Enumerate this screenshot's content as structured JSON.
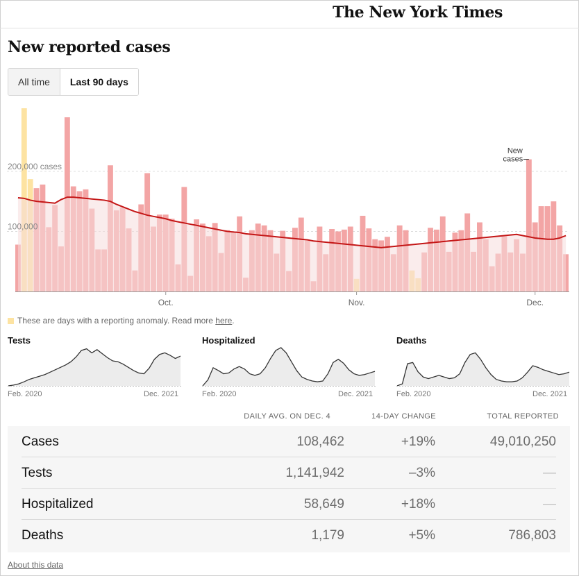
{
  "masthead": {
    "logo_text": "The New York Times"
  },
  "page": {
    "title": "New reported cases"
  },
  "toggle": {
    "options": [
      "All time",
      "Last 90 days"
    ],
    "selected": "Last 90 days"
  },
  "chart_data": {
    "type": "bar",
    "title": "New reported cases",
    "ylim": [
      0,
      305000
    ],
    "y_gridlines": [
      {
        "value": 100000,
        "label": "100,000"
      },
      {
        "value": 200000,
        "label": "200,000 cases"
      }
    ],
    "x_ticks": [
      {
        "index": 24,
        "label": "Oct."
      },
      {
        "index": 55,
        "label": "Nov."
      },
      {
        "index": 84,
        "label": "Dec."
      }
    ],
    "series": [
      {
        "name": "daily",
        "values": [
          78000,
          305000,
          187000,
          172000,
          178000,
          107000,
          144000,
          75000,
          290000,
          175000,
          167000,
          170000,
          138000,
          70000,
          70000,
          210000,
          135000,
          140000,
          105000,
          35000,
          145000,
          197000,
          108000,
          128000,
          128000,
          121000,
          45000,
          174000,
          26000,
          120000,
          113000,
          92000,
          114000,
          64000,
          102000,
          100000,
          125000,
          23000,
          102000,
          113000,
          110000,
          102000,
          63000,
          101000,
          34000,
          106000,
          123000,
          85000,
          17000,
          108000,
          62000,
          104000,
          100000,
          103000,
          108000,
          21000,
          126000,
          105000,
          87000,
          85000,
          91000,
          62000,
          110000,
          102000,
          35000,
          22000,
          65000,
          106000,
          103000,
          125000,
          66000,
          98000,
          102000,
          130000,
          66000,
          115000,
          87000,
          42000,
          63000,
          92000,
          65000,
          87000,
          63000,
          220000,
          115000,
          142000,
          142000,
          150000,
          110000,
          62000
        ],
        "anomaly": [
          0,
          1,
          1,
          0,
          0,
          0,
          0,
          0,
          0,
          0,
          0,
          0,
          0,
          0,
          0,
          0,
          0,
          0,
          0,
          0,
          0,
          0,
          0,
          0,
          0,
          0,
          0,
          0,
          0,
          0,
          0,
          0,
          0,
          0,
          0,
          0,
          0,
          0,
          0,
          0,
          0,
          0,
          0,
          0,
          0,
          0,
          0,
          0,
          0,
          0,
          0,
          0,
          0,
          0,
          0,
          1,
          0,
          0,
          0,
          0,
          0,
          0,
          0,
          0,
          1,
          1,
          0,
          0,
          0,
          0,
          0,
          0,
          0,
          0,
          0,
          0,
          0,
          0,
          0,
          0,
          0,
          0,
          0,
          0,
          0,
          0,
          0,
          0,
          0,
          0
        ]
      },
      {
        "name": "7-day average",
        "values": [
          156000,
          155000,
          152000,
          150000,
          149000,
          148000,
          147000,
          153000,
          157000,
          157000,
          156000,
          155000,
          154000,
          153000,
          152000,
          150000,
          145000,
          141000,
          137000,
          133000,
          130000,
          127000,
          125000,
          123000,
          121000,
          118000,
          116000,
          114000,
          112000,
          110000,
          108000,
          106000,
          104000,
          102000,
          100000,
          99000,
          98000,
          96000,
          95000,
          94000,
          93000,
          92000,
          91000,
          90000,
          89000,
          88000,
          87000,
          86000,
          84000,
          83000,
          82000,
          81000,
          80000,
          79000,
          78000,
          77000,
          76000,
          75000,
          74000,
          73000,
          74000,
          75000,
          76000,
          77000,
          78000,
          79000,
          80000,
          81000,
          82000,
          83000,
          84000,
          85000,
          86000,
          87000,
          88000,
          89000,
          90000,
          91000,
          92000,
          93000,
          94000,
          95000,
          93000,
          91000,
          89000,
          88000,
          87000,
          87000,
          89000,
          93000
        ]
      }
    ],
    "annotation": {
      "label": "New cases",
      "index": 83
    }
  },
  "anomaly_note": {
    "text": "These are days with a reporting anomaly. Read more ",
    "link": "here",
    "after": "."
  },
  "small_charts": [
    {
      "title": "Tests",
      "start_label": "Feb. 2020",
      "end_label": "Dec. 2021",
      "values": [
        0,
        0.02,
        0.05,
        0.1,
        0.16,
        0.2,
        0.24,
        0.28,
        0.34,
        0.4,
        0.46,
        0.52,
        0.6,
        0.72,
        0.88,
        0.92,
        0.82,
        0.9,
        0.8,
        0.7,
        0.62,
        0.6,
        0.54,
        0.46,
        0.38,
        0.32,
        0.3,
        0.44,
        0.66,
        0.78,
        0.82,
        0.76,
        0.68,
        0.74
      ]
    },
    {
      "title": "Hospitalized",
      "start_label": "Feb. 2020",
      "end_label": "Dec. 2021",
      "values": [
        0,
        0.15,
        0.45,
        0.38,
        0.3,
        0.32,
        0.42,
        0.48,
        0.42,
        0.3,
        0.26,
        0.3,
        0.45,
        0.68,
        0.88,
        0.95,
        0.82,
        0.6,
        0.38,
        0.22,
        0.16,
        0.12,
        0.1,
        0.12,
        0.3,
        0.58,
        0.66,
        0.56,
        0.4,
        0.3,
        0.26,
        0.28,
        0.32,
        0.36
      ]
    },
    {
      "title": "Deaths",
      "start_label": "Feb. 2020",
      "end_label": "Dec. 2021",
      "values": [
        0,
        0.05,
        0.55,
        0.58,
        0.35,
        0.22,
        0.18,
        0.22,
        0.26,
        0.22,
        0.18,
        0.2,
        0.3,
        0.58,
        0.78,
        0.82,
        0.66,
        0.45,
        0.28,
        0.16,
        0.12,
        0.1,
        0.1,
        0.12,
        0.2,
        0.34,
        0.5,
        0.46,
        0.4,
        0.36,
        0.32,
        0.28,
        0.3,
        0.34
      ]
    }
  ],
  "summary": {
    "headers": [
      "DAILY AVG. ON DEC. 4",
      "14-DAY CHANGE",
      "TOTAL REPORTED"
    ],
    "rows": [
      {
        "name": "Cases",
        "avg": "108,462",
        "change": "+19%",
        "total": "49,010,250"
      },
      {
        "name": "Tests",
        "avg": "1,141,942",
        "change": "–3%",
        "total": "—"
      },
      {
        "name": "Hospitalized",
        "avg": "58,649",
        "change": "+18%",
        "total": "—"
      },
      {
        "name": "Deaths",
        "avg": "1,179",
        "change": "+5%",
        "total": "786,803"
      }
    ]
  },
  "footer": {
    "about": "About this data"
  },
  "colors": {
    "bar": "#f3a5a5",
    "bar_light": "#f7c6c6",
    "anomaly": "#fde3a2",
    "avg_line": "#c41616",
    "avg_fill": "#f6dcdc",
    "small_fill": "#ececec",
    "small_line": "#333333"
  }
}
